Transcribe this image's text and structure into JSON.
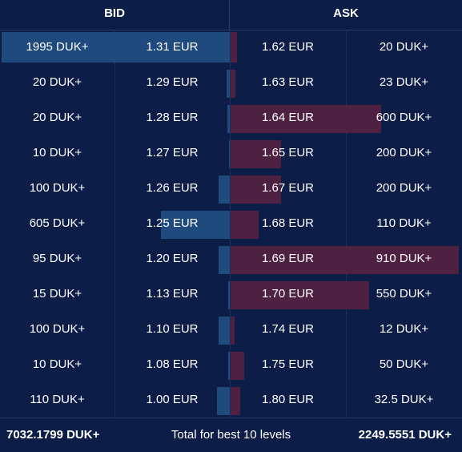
{
  "header": {
    "bid_label": "BID",
    "ask_label": "ASK"
  },
  "colors": {
    "bid_bar": "#1e4a7e",
    "ask_bar": "#4e2142",
    "background": "#0c1e47"
  },
  "levels": [
    {
      "bid_qty": "1995 DUK+",
      "bid_price": "1.31 EUR",
      "ask_price": "1.62 EUR",
      "ask_qty": "20 DUK+"
    },
    {
      "bid_qty": "20 DUK+",
      "bid_price": "1.29 EUR",
      "ask_price": "1.63 EUR",
      "ask_qty": "23 DUK+"
    },
    {
      "bid_qty": "20 DUK+",
      "bid_price": "1.28 EUR",
      "ask_price": "1.64 EUR",
      "ask_qty": "600 DUK+"
    },
    {
      "bid_qty": "10 DUK+",
      "bid_price": "1.27 EUR",
      "ask_price": "1.65 EUR",
      "ask_qty": "200 DUK+"
    },
    {
      "bid_qty": "100 DUK+",
      "bid_price": "1.26 EUR",
      "ask_price": "1.67 EUR",
      "ask_qty": "200 DUK+"
    },
    {
      "bid_qty": "605 DUK+",
      "bid_price": "1.25 EUR",
      "ask_price": "1.68 EUR",
      "ask_qty": "110 DUK+"
    },
    {
      "bid_qty": "95 DUK+",
      "bid_price": "1.20 EUR",
      "ask_price": "1.69 EUR",
      "ask_qty": "910 DUK+"
    },
    {
      "bid_qty": "15 DUK+",
      "bid_price": "1.13 EUR",
      "ask_price": "1.70 EUR",
      "ask_qty": "550 DUK+"
    },
    {
      "bid_qty": "100 DUK+",
      "bid_price": "1.10 EUR",
      "ask_price": "1.74 EUR",
      "ask_qty": "12 DUK+"
    },
    {
      "bid_qty": "10 DUK+",
      "bid_price": "1.08 EUR",
      "ask_price": "1.75 EUR",
      "ask_qty": "50 DUK+"
    },
    {
      "bid_qty": "110 DUK+",
      "bid_price": "1.00 EUR",
      "ask_price": "1.80 EUR",
      "ask_qty": "32.5 DUK+"
    }
  ],
  "footer": {
    "bid_total": "7032.1799 DUK+",
    "label": "Total for best 10 levels",
    "ask_total": "2249.5551 DUK+"
  }
}
